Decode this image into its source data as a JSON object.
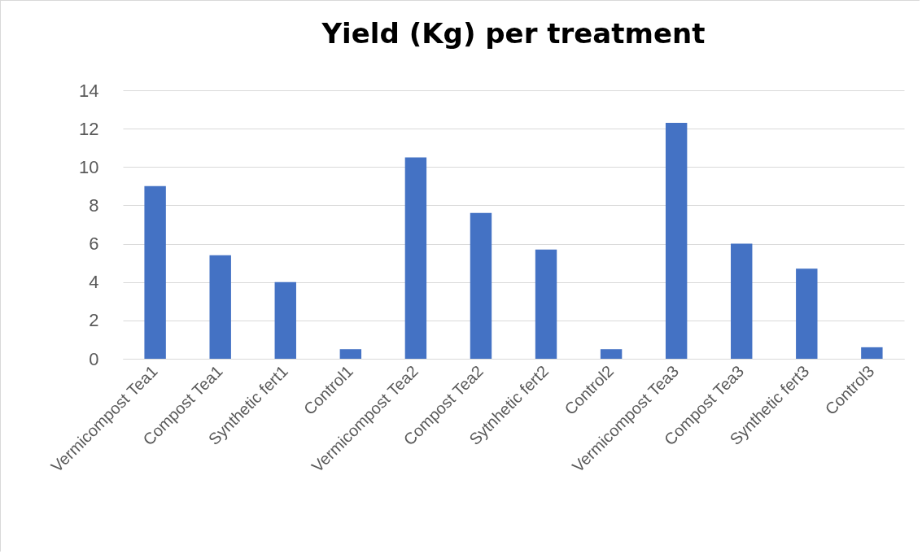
{
  "chart_data": {
    "type": "bar",
    "title": "Yield (Kg) per treatment",
    "categories": [
      "Vermicompost Tea1",
      "Compost Tea1",
      "Synthetic fert1",
      "Control1",
      "Vermicompost Tea2",
      "Compost Tea2",
      "Sytnhetic fert2",
      "Control2",
      "Vermicompost Tea3",
      "Compost Tea3",
      "Synthetic fert3",
      "Control3"
    ],
    "values": [
      9.0,
      5.4,
      4.0,
      0.5,
      10.5,
      7.6,
      5.7,
      0.5,
      12.3,
      6.0,
      4.7,
      0.6
    ],
    "color": "#4472c4",
    "ylim": [
      0,
      14
    ],
    "yticks": [
      0,
      2,
      4,
      6,
      8,
      10,
      12,
      14
    ],
    "grid": "y"
  }
}
